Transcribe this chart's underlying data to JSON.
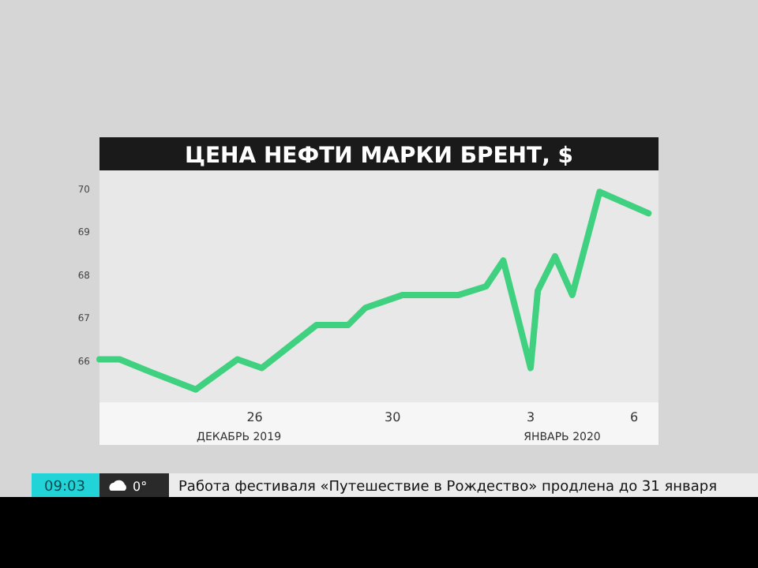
{
  "chart_data": {
    "type": "line",
    "title": "ЦЕНА НЕФТИ МАРКИ БРЕНТ, $",
    "x": [
      "2019-12-21T12:00",
      "2019-12-22T02:00",
      "2019-12-23T00:00",
      "2019-12-24T07:00",
      "2019-12-25T12:00",
      "2019-12-26T05:00",
      "2019-12-27T19:00",
      "2019-12-28T17:00",
      "2019-12-29T05:00",
      "2019-12-30T07:00",
      "2019-12-31T22:00",
      "2020-01-01T17:00",
      "2020-01-02T05:00",
      "2020-01-03T00:00",
      "2020-01-03T05:00",
      "2020-01-03T17:00",
      "2020-01-04T05:00",
      "2020-01-05T00:00",
      "2020-01-06T10:00"
    ],
    "series": [
      {
        "color": "#3fd17f",
        "values": [
          66.0,
          66.0,
          65.7,
          65.3,
          66.0,
          65.8,
          66.8,
          66.8,
          67.2,
          67.5,
          67.5,
          67.7,
          68.3,
          65.8,
          67.6,
          68.4,
          67.5,
          69.9,
          69.4
        ]
      }
    ],
    "xlim": [
      "2019-12-21T12:00",
      "2020-01-06T17:00"
    ],
    "xticks": [
      {
        "value": "2019-12-26",
        "label": "26"
      },
      {
        "value": "2019-12-30",
        "label": "30"
      },
      {
        "value": "2020-01-03",
        "label": "3"
      },
      {
        "value": "2020-01-06",
        "label": "6"
      }
    ],
    "ylim": [
      65,
      70.4
    ],
    "yticks": [
      66,
      67,
      68,
      69,
      70
    ],
    "grid": false,
    "legend": false,
    "marker": "none",
    "line_style": "solid",
    "annotations": [
      "ДЕКАБРЬ 2019",
      "ЯНВАРЬ 2020",
      "09:03",
      "0°",
      "Работа фестиваля «Путешествие в Рождество» продлена до 31 января"
    ]
  }
}
